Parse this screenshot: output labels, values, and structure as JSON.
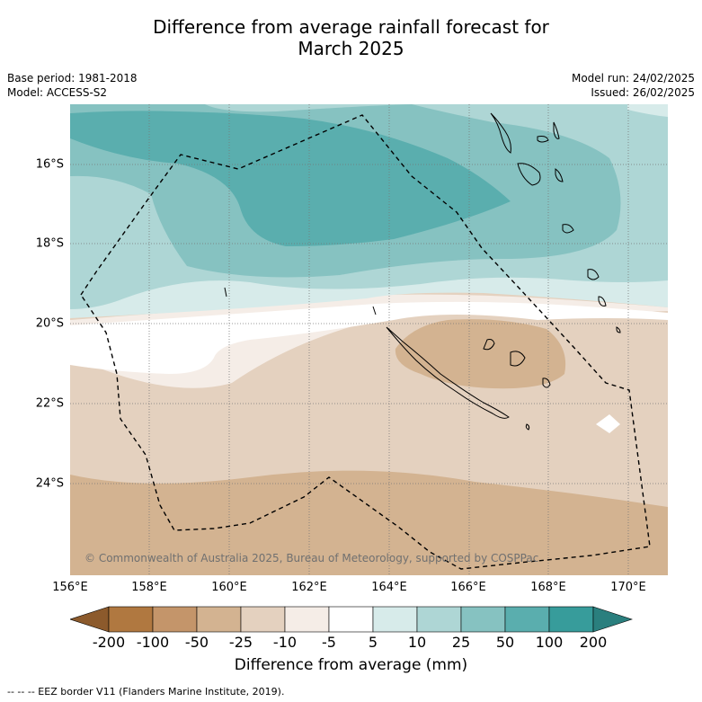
{
  "title_line1": "Difference from average rainfall forecast for",
  "title_line2": "March 2025",
  "base_period": "Base period: 1981-2018",
  "model": "Model: ACCESS-S2",
  "model_run": "Model run: 24/02/2025",
  "issued": "Issued: 26/02/2025",
  "copyright": "© Commonwealth of Australia 2025, Bureau of Meteorology, supported by COSPPac",
  "lat_labels": [
    "16°S",
    "18°S",
    "20°S",
    "22°S",
    "24°S"
  ],
  "lon_labels": [
    "156°E",
    "158°E",
    "160°E",
    "162°E",
    "164°E",
    "166°E",
    "168°E",
    "170°E"
  ],
  "colorbar": {
    "ticks": [
      "-200",
      "-100",
      "-50",
      "-25",
      "-10",
      "-5",
      "5",
      "10",
      "25",
      "50",
      "100",
      "200"
    ],
    "colors": [
      "#8c5a2c",
      "#b07840",
      "#c4956a",
      "#d3b391",
      "#e4d1bf",
      "#f5ede7",
      "#ffffff",
      "#d7ebea",
      "#aed6d5",
      "#86c2c1",
      "#5aaeae",
      "#379c9b",
      "#2a7f7e"
    ],
    "label": "Difference from average (mm)"
  },
  "footnote": "--  --  -- EEZ border V11 (Flanders Marine Institute, 2019)."
}
